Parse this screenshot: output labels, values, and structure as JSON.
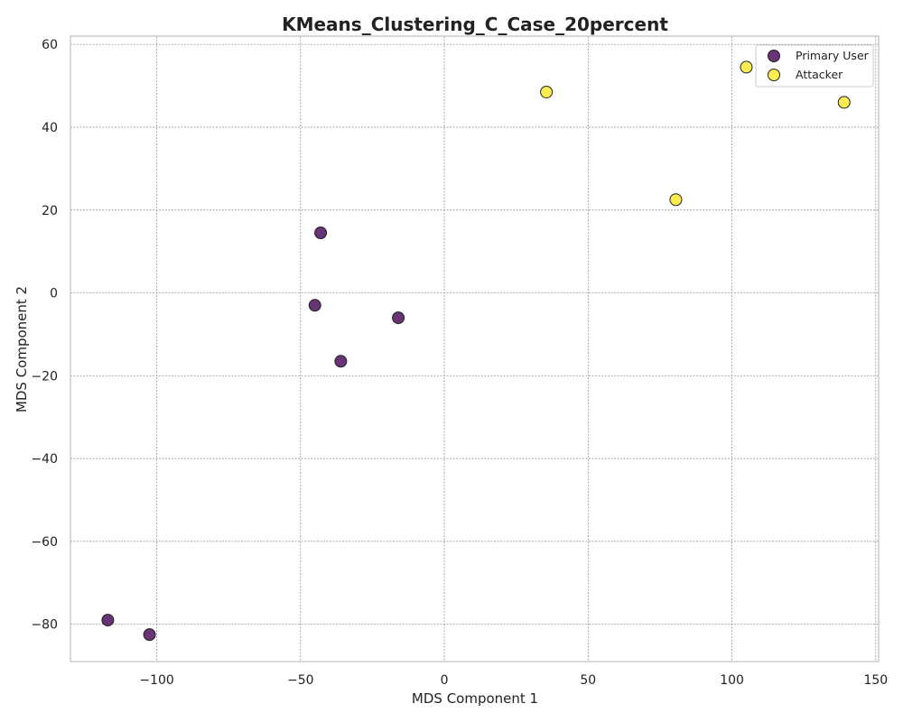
{
  "chart_data": {
    "type": "scatter",
    "title": "KMeans_Clustering_C_Case_20percent",
    "xlabel": "MDS Component 1",
    "ylabel": "MDS Component 2",
    "xlim": [
      -130,
      151
    ],
    "ylim": [
      -89,
      62
    ],
    "xticks": [
      -100,
      -50,
      0,
      50,
      100,
      150
    ],
    "yticks": [
      60,
      40,
      20,
      0,
      -20,
      -40,
      -60,
      -80
    ],
    "grid": true,
    "legend_position": "top-right",
    "series": [
      {
        "name": "Primary User",
        "color": "#440154",
        "points": [
          {
            "x": -43,
            "y": 14.5
          },
          {
            "x": -45,
            "y": -3
          },
          {
            "x": -16,
            "y": -6
          },
          {
            "x": -36,
            "y": -16.5
          },
          {
            "x": -117,
            "y": -79
          },
          {
            "x": -102.5,
            "y": -82.5
          }
        ]
      },
      {
        "name": "Attacker",
        "color": "#fde725",
        "points": [
          {
            "x": 35.5,
            "y": 48.5
          },
          {
            "x": 80.5,
            "y": 22.5
          },
          {
            "x": 105,
            "y": 54.5
          },
          {
            "x": 139,
            "y": 46
          }
        ]
      }
    ]
  }
}
